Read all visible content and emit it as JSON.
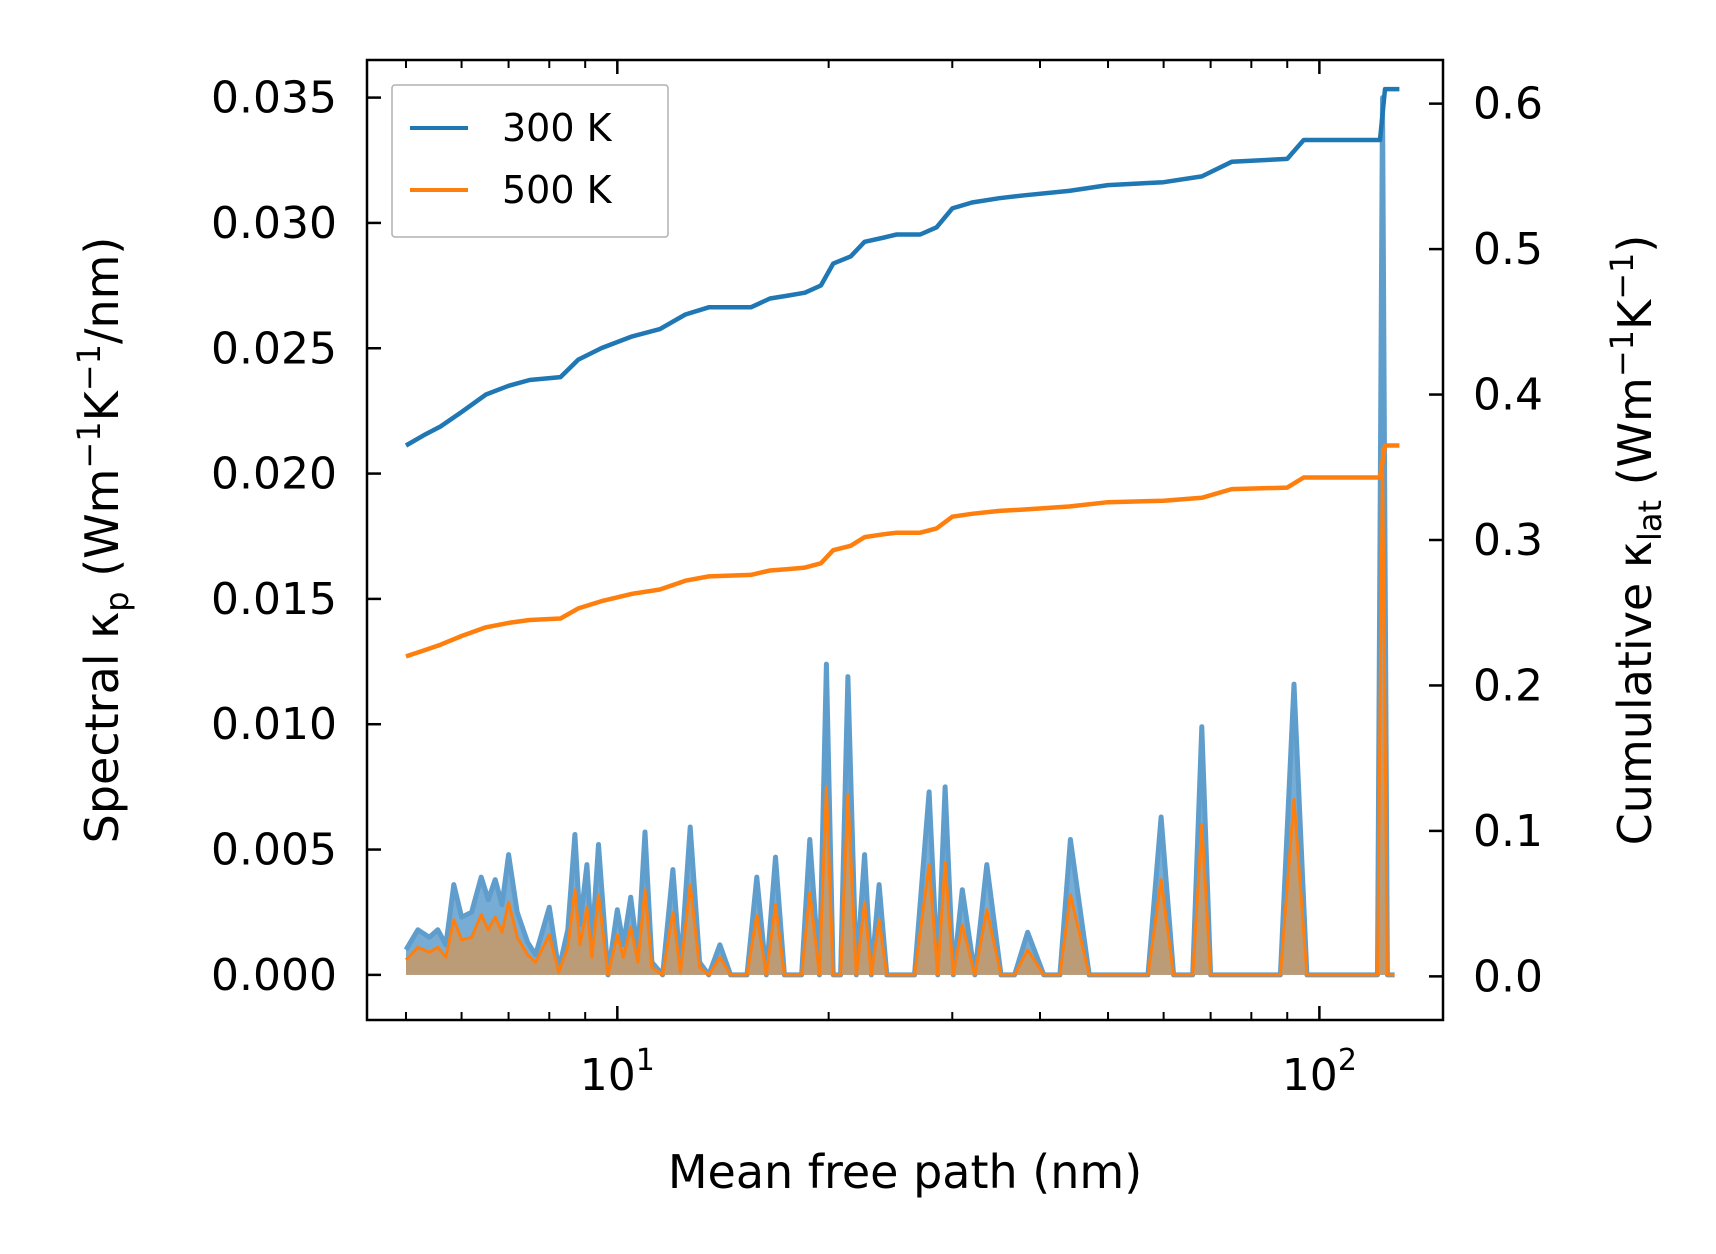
{
  "chart_data": {
    "type": "line",
    "xscale": "log",
    "xlabel": "Mean free path (nm)",
    "ylabel_left": {
      "main": "Spectral κ",
      "sub": "p",
      "units_a": " (Wm",
      "sup1": "−1",
      "units_b": "K",
      "sup2": "−1",
      "units_c": "/nm)"
    },
    "ylabel_right": {
      "main": "Cumulative κ",
      "sub": "lat",
      "units_a": " (Wm",
      "sup1": "−1",
      "units_b": "K",
      "sup2": "−1",
      "units_c": ")"
    },
    "xlim": [
      4.4,
      150
    ],
    "ylim_left": [
      -0.0018,
      0.0365
    ],
    "ylim_right": [
      -0.03,
      0.63
    ],
    "x_ticks": [
      {
        "value": 10,
        "base": "10",
        "exp": "1"
      },
      {
        "value": 100,
        "base": "10",
        "exp": "2"
      }
    ],
    "y_ticks_left": [
      "0.000",
      "0.005",
      "0.010",
      "0.015",
      "0.020",
      "0.025",
      "0.030",
      "0.035"
    ],
    "y_ticks_left_values": [
      0,
      0.005,
      0.01,
      0.015,
      0.02,
      0.025,
      0.03,
      0.035
    ],
    "y_ticks_right": [
      "0.0",
      "0.1",
      "0.2",
      "0.3",
      "0.4",
      "0.5",
      "0.6"
    ],
    "y_ticks_right_values": [
      0,
      0.1,
      0.2,
      0.3,
      0.4,
      0.5,
      0.6
    ],
    "legend": {
      "placement": "top-left",
      "entries": [
        "300 K",
        "500 K"
      ]
    },
    "colors": {
      "300 K": "#1f77b4",
      "500 K": "#ff7f0e",
      "fill_300": "#5f9ecc",
      "fill_500": "#c39a6b"
    },
    "series": [
      {
        "name": "300 K",
        "kind": "cumulative",
        "axis": "right",
        "x": [
          5,
          5.3,
          5.6,
          6,
          6.5,
          7,
          7.5,
          8.3,
          8.8,
          9.5,
          10.5,
          11.5,
          12.5,
          13.5,
          15.5,
          16.5,
          17.5,
          18.5,
          19.5,
          20.3,
          21.5,
          22.5,
          24,
          25,
          27,
          28.5,
          30,
          32,
          35,
          38,
          44,
          50,
          60,
          68,
          75,
          90,
          95,
          110,
          122,
          124,
          130
        ],
        "y": [
          0.365,
          0.372,
          0.378,
          0.388,
          0.4,
          0.406,
          0.41,
          0.412,
          0.424,
          0.432,
          0.44,
          0.445,
          0.455,
          0.46,
          0.46,
          0.466,
          0.468,
          0.47,
          0.475,
          0.49,
          0.495,
          0.505,
          0.508,
          0.51,
          0.51,
          0.515,
          0.528,
          0.532,
          0.535,
          0.537,
          0.54,
          0.544,
          0.546,
          0.55,
          0.56,
          0.562,
          0.575,
          0.575,
          0.575,
          0.61,
          0.61
        ]
      },
      {
        "name": "500 K",
        "kind": "cumulative",
        "axis": "right",
        "x": [
          5,
          5.3,
          5.6,
          6,
          6.5,
          7,
          7.5,
          8.3,
          8.8,
          9.5,
          10.5,
          11.5,
          12.5,
          13.5,
          15.5,
          16.5,
          17.5,
          18.5,
          19.5,
          20.3,
          21.5,
          22.5,
          24,
          25,
          27,
          28.5,
          30,
          32,
          35,
          38,
          44,
          50,
          60,
          68,
          75,
          90,
          95,
          110,
          122,
          124,
          130
        ],
        "y": [
          0.22,
          0.224,
          0.228,
          0.234,
          0.24,
          0.243,
          0.245,
          0.246,
          0.253,
          0.258,
          0.263,
          0.266,
          0.272,
          0.275,
          0.276,
          0.279,
          0.28,
          0.281,
          0.284,
          0.293,
          0.296,
          0.302,
          0.304,
          0.305,
          0.305,
          0.308,
          0.316,
          0.318,
          0.32,
          0.321,
          0.323,
          0.326,
          0.327,
          0.329,
          0.335,
          0.336,
          0.343,
          0.343,
          0.343,
          0.365,
          0.365
        ]
      },
      {
        "name": "300 K spectral",
        "kind": "spectral",
        "axis": "left",
        "x": [
          5,
          5.2,
          5.4,
          5.55,
          5.7,
          5.85,
          6.0,
          6.2,
          6.4,
          6.55,
          6.7,
          6.85,
          7.0,
          7.2,
          7.45,
          7.65,
          8.0,
          8.25,
          8.5,
          8.7,
          8.85,
          9.05,
          9.2,
          9.4,
          9.7,
          10.0,
          10.2,
          10.45,
          10.7,
          10.95,
          11.2,
          11.6,
          12.0,
          12.3,
          12.7,
          13.1,
          13.5,
          14.0,
          14.5,
          15.3,
          15.8,
          16.3,
          16.8,
          17.3,
          18.3,
          18.8,
          19.4,
          19.85,
          20.3,
          20.8,
          21.3,
          21.9,
          22.5,
          23.0,
          23.6,
          24.2,
          25.0,
          26.5,
          27.8,
          28.6,
          29.3,
          30.1,
          31.0,
          32.3,
          33.6,
          35.2,
          36.8,
          38.4,
          40.5,
          42.7,
          44.2,
          47.0,
          57.0,
          59.5,
          62.0,
          66.0,
          68.0,
          70.0,
          88.0,
          92.0,
          96.0,
          118.0,
          121.0,
          123.0,
          125.0,
          127.0,
          128.0
        ],
        "y": [
          0.001,
          0.0018,
          0.0015,
          0.0018,
          0.0012,
          0.0036,
          0.0023,
          0.0025,
          0.0039,
          0.003,
          0.0038,
          0.0028,
          0.0048,
          0.0025,
          0.0013,
          0.0008,
          0.0027,
          0.0002,
          0.0018,
          0.0056,
          0.002,
          0.0044,
          0.0012,
          0.0052,
          0.0,
          0.0026,
          0.0012,
          0.0031,
          0.0008,
          0.0057,
          0.0005,
          0.0,
          0.0042,
          0.0002,
          0.0059,
          0.0005,
          0.0,
          0.0012,
          0.0,
          0.0,
          0.0039,
          0.0,
          0.0047,
          0.0,
          0.0,
          0.0054,
          0.0,
          0.0124,
          0.0,
          0.0,
          0.0119,
          0.0,
          0.0048,
          0.0,
          0.0036,
          0.0,
          0.0,
          0.0,
          0.0073,
          0.0,
          0.0075,
          0.0,
          0.0034,
          0.0,
          0.0044,
          0.0,
          0.0,
          0.0017,
          0.0,
          0.0,
          0.0054,
          0.0,
          0.0,
          0.0063,
          0.0,
          0.0,
          0.0099,
          0.0,
          0.0,
          0.0116,
          0.0,
          0.0,
          0.0,
          0.035,
          0.0,
          0.0,
          0.0
        ]
      },
      {
        "name": "500 K spectral",
        "kind": "spectral",
        "axis": "left",
        "x": [
          5,
          5.2,
          5.4,
          5.55,
          5.7,
          5.85,
          6.0,
          6.2,
          6.4,
          6.55,
          6.7,
          6.85,
          7.0,
          7.2,
          7.45,
          7.65,
          8.0,
          8.25,
          8.5,
          8.7,
          8.85,
          9.05,
          9.2,
          9.4,
          9.7,
          10.0,
          10.2,
          10.45,
          10.7,
          10.95,
          11.2,
          11.6,
          12.0,
          12.3,
          12.7,
          13.1,
          13.5,
          14.0,
          14.5,
          15.3,
          15.8,
          16.3,
          16.8,
          17.3,
          18.3,
          18.8,
          19.4,
          19.85,
          20.3,
          20.8,
          21.3,
          21.9,
          22.5,
          23.0,
          23.6,
          24.2,
          25.0,
          26.5,
          27.8,
          28.6,
          29.3,
          30.1,
          31.0,
          32.3,
          33.6,
          35.2,
          36.8,
          38.4,
          40.5,
          42.7,
          44.2,
          47.0,
          57.0,
          59.5,
          62.0,
          66.0,
          68.0,
          70.0,
          88.0,
          92.0,
          96.0,
          118.0,
          121.0,
          123.0,
          125.0,
          127.0,
          128.0
        ],
        "y": [
          0.0006,
          0.0011,
          0.0009,
          0.0011,
          0.0007,
          0.0022,
          0.0014,
          0.0015,
          0.0024,
          0.0018,
          0.0023,
          0.0017,
          0.0029,
          0.0015,
          0.0008,
          0.0005,
          0.0016,
          0.0001,
          0.0011,
          0.0034,
          0.0012,
          0.0027,
          0.0007,
          0.0032,
          0.0,
          0.0016,
          0.0007,
          0.0019,
          0.0005,
          0.0034,
          0.0003,
          0.0,
          0.0025,
          0.0001,
          0.0036,
          0.0003,
          0.0,
          0.0007,
          0.0,
          0.0,
          0.0024,
          0.0,
          0.0028,
          0.0,
          0.0,
          0.0033,
          0.0,
          0.0075,
          0.0,
          0.0,
          0.0072,
          0.0,
          0.0029,
          0.0,
          0.0022,
          0.0,
          0.0,
          0.0,
          0.0044,
          0.0,
          0.0045,
          0.0,
          0.002,
          0.0,
          0.0026,
          0.0,
          0.0,
          0.001,
          0.0,
          0.0,
          0.0032,
          0.0,
          0.0,
          0.0038,
          0.0,
          0.0,
          0.006,
          0.0,
          0.0,
          0.007,
          0.0,
          0.0,
          0.0,
          0.021,
          0.0,
          0.0,
          0.0
        ]
      }
    ]
  }
}
